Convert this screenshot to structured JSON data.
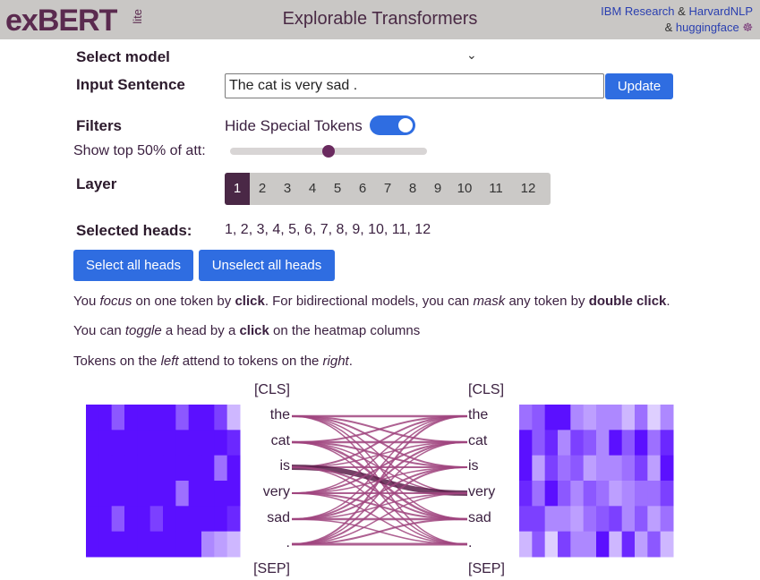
{
  "header": {
    "logo_main": "exBERT",
    "logo_sub": "lite",
    "title": "Explorable Transformers",
    "ibm": "IBM Research",
    "amp1": "&",
    "harvard": "HarvardNLP",
    "amp2": "&",
    "hf": "huggingface"
  },
  "controls": {
    "select_model_label": "Select model",
    "input_sentence_label": "Input Sentence",
    "input_value": "The cat is very sad .",
    "update_label": "Update",
    "filters_label": "Filters",
    "hide_special_label": "Hide Special Tokens",
    "hide_special_on": true,
    "show_top_label": "Show top 50% of att:",
    "slider_value_percent": 50,
    "layer_label": "Layer",
    "layers": [
      "1",
      "2",
      "3",
      "4",
      "5",
      "6",
      "7",
      "8",
      "9",
      "10",
      "11",
      "12"
    ],
    "selected_layer": "1",
    "selected_heads_label": "Selected heads:",
    "selected_heads_value": "1, 2, 3, 4, 5, 6, 7, 8, 9, 10, 11, 12",
    "select_all_label": "Select all heads",
    "unselect_all_label": "Unselect all heads"
  },
  "instructions": {
    "line1": [
      "You ",
      "focus",
      " on one token by ",
      "click",
      ". For bidirectional models, you can ",
      "mask",
      " any token by ",
      "double click",
      "."
    ],
    "line2": [
      "You can ",
      "toggle",
      " a head by a ",
      "click",
      " on the heatmap columns"
    ],
    "line3": [
      "Tokens on the ",
      "left",
      " attend to tokens on the ",
      "right",
      "."
    ]
  },
  "tokens_left": [
    "[CLS]",
    "the",
    "cat",
    "is",
    "very",
    "sad",
    ".",
    "[SEP]"
  ],
  "tokens_right": [
    "[CLS]",
    "the",
    "cat",
    "is",
    "very",
    "sad",
    ".",
    "[SEP]"
  ],
  "colors": {
    "accent": "#2f6de1",
    "header_bg": "#c9c7c5",
    "edge": "#a0457f",
    "heat_max": "#5b10ff"
  }
}
